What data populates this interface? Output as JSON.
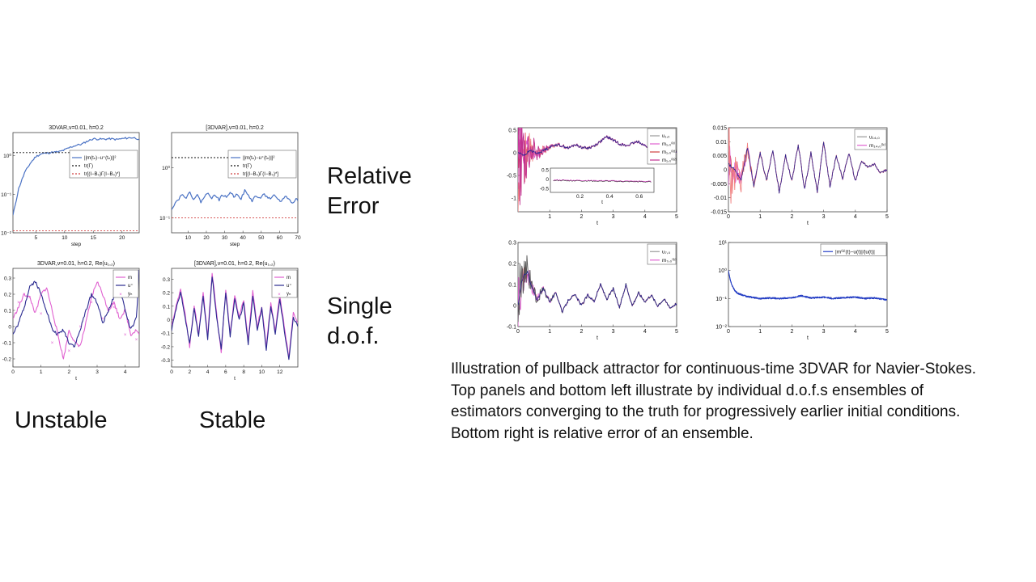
{
  "slide": {
    "labels": {
      "relative_error": [
        "Relative",
        "Error"
      ],
      "single_dof": [
        "Single",
        "d.o.f."
      ],
      "unstable": "Unstable",
      "stable": "Stable"
    },
    "caption": [
      "Illustration of pullback attractor for continuous-time 3DVAR for Navier-Stokes.",
      "Top panels and bottom left illustrate by individual d.o.f.s ensembles of",
      "estimators converging to the truth for progressively earlier initial conditions.",
      "Bottom right is relative error of an ensemble."
    ]
  },
  "colors": {
    "blue": "#4a72c4",
    "magenta": "#e060d0",
    "red": "#d04040",
    "black": "#111111",
    "navy": "#2a2a90",
    "ens_blue": "#2540c8"
  },
  "chart_data": [
    {
      "id": "unstable-error",
      "type": "line",
      "title": "3DVAR,ν=0.01, h=0.2",
      "xlabel": "step",
      "xlim": [
        1,
        23
      ],
      "ylim": [
        -2,
        0.6
      ],
      "yscale": "log",
      "xticks": [
        5,
        10,
        15,
        20
      ],
      "yticks": [
        {
          "v": 0,
          "t": "10⁰"
        },
        {
          "v": -1,
          "t": "10⁻¹"
        },
        {
          "v": -2,
          "t": "10⁻²"
        }
      ],
      "legend": [
        "||m(tₙ)−u⁺(tₙ)||²",
        "tr(Γ)",
        "tr[(I−B₀)Γ(I−B₀)*]"
      ],
      "series": [
        {
          "name": "||m(tₙ)−u⁺(tₙ)||²",
          "x": [
            1,
            2,
            3,
            4,
            5,
            6,
            7,
            8,
            9,
            10,
            11,
            12,
            13,
            14,
            15,
            16,
            17,
            18,
            19,
            20,
            21,
            22,
            23
          ],
          "y": [
            -1.55,
            -0.85,
            -0.45,
            -0.2,
            -0.02,
            0.05,
            0.07,
            0.09,
            0.1,
            0.15,
            0.22,
            0.27,
            0.3,
            0.38,
            0.44,
            0.43,
            0.43,
            0.44,
            0.42,
            0.44,
            0.46,
            0.47,
            0.43
          ]
        },
        {
          "name": "tr(Γ)",
          "x": [
            1,
            23
          ],
          "y": [
            0.08,
            0.08
          ]
        },
        {
          "name": "tr[(I−B₀)Γ(I−B₀)*]",
          "x": [
            1,
            23
          ],
          "y": [
            -1.95,
            -1.95
          ]
        }
      ]
    },
    {
      "id": "stable-error",
      "type": "line",
      "title": "[3DVAR],ν=0.01, h=0.2",
      "xlabel": "step",
      "xlim": [
        1,
        70
      ],
      "ylim": [
        -1.3,
        0.7
      ],
      "yscale": "log",
      "xticks": [
        10,
        20,
        30,
        40,
        50,
        60,
        70
      ],
      "yticks": [
        {
          "v": 0,
          "t": "10⁰"
        },
        {
          "v": -1,
          "t": "10⁻¹"
        }
      ],
      "legend": [
        "||m(tₙ)−u⁺(tₙ)||²",
        "tr(Γ)",
        "tr[(I−B₀)Γ(I−B₀)*]"
      ],
      "series": [
        {
          "name": "||m(tₙ)−u⁺(tₙ)||²",
          "x": [
            1,
            3,
            5,
            7,
            9,
            11,
            13,
            15,
            17,
            19,
            21,
            23,
            25,
            27,
            29,
            31,
            33,
            35,
            37,
            39,
            41,
            43,
            45,
            47,
            49,
            51,
            53,
            55,
            57,
            59,
            61,
            63,
            65,
            67,
            69,
            70
          ],
          "y": [
            -0.82,
            -0.7,
            -0.62,
            -0.52,
            -0.6,
            -0.5,
            -0.62,
            -0.55,
            -0.68,
            -0.58,
            -0.5,
            -0.6,
            -0.55,
            -0.64,
            -0.54,
            -0.6,
            -0.48,
            -0.58,
            -0.52,
            -0.62,
            -0.46,
            -0.56,
            -0.66,
            -0.56,
            -0.62,
            -0.52,
            -0.58,
            -0.64,
            -0.56,
            -0.62,
            -0.68,
            -0.56,
            -0.62,
            -0.72,
            -0.62,
            -0.66
          ]
        },
        {
          "name": "tr(Γ)",
          "x": [
            1,
            70
          ],
          "y": [
            0.2,
            0.2
          ]
        },
        {
          "name": "tr[(I−B₀)Γ(I−B₀)*]",
          "x": [
            1,
            70
          ],
          "y": [
            -1.0,
            -1.0
          ]
        }
      ]
    },
    {
      "id": "unstable-dof",
      "type": "line",
      "title": "3DVAR,ν=0.01, h=0.2, Re(u₁,₂)",
      "xlabel": "t",
      "xlim": [
        0,
        4.5
      ],
      "ylim": [
        -0.25,
        0.36
      ],
      "xticks": [
        0,
        1,
        2,
        3,
        4
      ],
      "yticks": [
        -0.2,
        -0.1,
        0,
        0.1,
        0.2,
        0.3
      ],
      "legend": [
        "m",
        "u⁺",
        "yₙ"
      ],
      "series": [
        {
          "name": "m",
          "x": [
            0,
            0.2,
            0.4,
            0.6,
            0.8,
            1.0,
            1.2,
            1.4,
            1.6,
            1.8,
            2.0,
            2.2,
            2.4,
            2.6,
            2.8,
            3.0,
            3.2,
            3.4,
            3.6,
            3.8,
            4.0,
            4.2,
            4.4,
            4.5
          ],
          "y": [
            0.05,
            0.12,
            0.2,
            0.18,
            0.08,
            0.2,
            0.24,
            0.1,
            -0.05,
            -0.2,
            -0.02,
            -0.1,
            -0.12,
            0.02,
            0.18,
            0.28,
            0.2,
            0.1,
            0.15,
            0.05,
            0.1,
            -0.05,
            -0.02,
            -0.05
          ]
        },
        {
          "name": "u⁺",
          "x": [
            0,
            0.2,
            0.4,
            0.6,
            0.8,
            1.0,
            1.2,
            1.4,
            1.6,
            1.8,
            2.0,
            2.2,
            2.4,
            2.6,
            2.8,
            3.0,
            3.2,
            3.4,
            3.6,
            3.8,
            4.0,
            4.2,
            4.4,
            4.5
          ],
          "y": [
            -0.05,
            0.02,
            0.12,
            0.25,
            0.28,
            0.2,
            0.1,
            -0.02,
            -0.05,
            -0.02,
            -0.1,
            -0.12,
            -0.02,
            0.1,
            0.2,
            0.15,
            0.02,
            0.1,
            0.18,
            0.25,
            0.1,
            -0.02,
            0.05,
            0.35
          ]
        },
        {
          "name": "yₙ",
          "x": [
            0.2,
            0.4,
            0.6,
            1.0,
            1.4,
            1.6,
            2.0,
            2.4,
            2.8,
            3.2,
            3.6,
            4.0,
            4.4
          ],
          "y": [
            0.15,
            0.2,
            0.18,
            0.08,
            -0.1,
            -0.05,
            -0.15,
            0.0,
            0.15,
            0.05,
            0.12,
            -0.05,
            -0.08
          ]
        }
      ]
    },
    {
      "id": "stable-dof",
      "type": "line",
      "title": "[3DVAR],ν=0.01, h=0.2, Re(u₁,₂)",
      "xlabel": "t",
      "xlim": [
        0,
        14
      ],
      "ylim": [
        -0.35,
        0.38
      ],
      "xticks": [
        0,
        2,
        4,
        6,
        8,
        10,
        12
      ],
      "yticks": [
        -0.3,
        -0.2,
        -0.1,
        0,
        0.1,
        0.2,
        0.3
      ],
      "legend": [
        "m",
        "u⁺",
        "yₙ"
      ],
      "series": [
        {
          "name": "m",
          "x": [
            0,
            0.5,
            1,
            1.5,
            2,
            2.5,
            3,
            3.5,
            4,
            4.5,
            5,
            5.5,
            6,
            6.5,
            7,
            7.5,
            8,
            8.5,
            9,
            9.5,
            10,
            10.5,
            11,
            11.5,
            12,
            12.5,
            13,
            13.5,
            14
          ],
          "y": [
            -0.05,
            0.1,
            0.22,
            0.05,
            -0.2,
            0.1,
            -0.1,
            0.2,
            -0.12,
            0.35,
            0.05,
            -0.25,
            0.22,
            -0.1,
            0.18,
            0.02,
            0.15,
            -0.15,
            0.22,
            -0.05,
            0.1,
            -0.2,
            0.12,
            -0.08,
            0.18,
            -0.05,
            -0.28,
            0.05,
            -0.02
          ]
        },
        {
          "name": "u⁺",
          "x": [
            0,
            0.5,
            1,
            1.5,
            2,
            2.5,
            3,
            3.5,
            4,
            4.5,
            5,
            5.5,
            6,
            6.5,
            7,
            7.5,
            8,
            8.5,
            9,
            9.5,
            10,
            10.5,
            11,
            11.5,
            12,
            12.5,
            13,
            13.5,
            14
          ],
          "y": [
            -0.08,
            0.08,
            0.2,
            0.02,
            -0.18,
            0.08,
            -0.12,
            0.18,
            -0.15,
            0.32,
            0.02,
            -0.22,
            0.2,
            -0.12,
            0.15,
            0.0,
            0.12,
            -0.18,
            0.18,
            -0.08,
            0.08,
            -0.22,
            0.1,
            -0.1,
            0.15,
            -0.08,
            -0.3,
            0.02,
            -0.05
          ]
        }
      ]
    },
    {
      "id": "pullback-u10",
      "type": "line",
      "xlabel": "t",
      "xlim": [
        0,
        5
      ],
      "ylim": [
        -1.3,
        0.55
      ],
      "xticks": [
        1,
        2,
        3,
        4,
        5
      ],
      "yticks": [
        -1,
        -0.5,
        0,
        0.5
      ],
      "legend": [
        "u₁,₀",
        "m₁,₀⁽ᵏ⁾",
        "m₁,₀⁽ᵏ¹⁾",
        "m₁,₀⁽ᵏ²⁾"
      ],
      "series": [
        {
          "name": "m₁,₀⁽ᵏ⁾",
          "x": [
            0,
            0.2,
            0.4,
            0.6,
            0.8,
            1.0,
            1.2,
            1.4,
            1.6,
            1.8,
            2.0,
            2.2,
            2.4,
            2.6,
            2.8,
            3.0,
            3.2,
            3.4,
            3.6,
            3.8,
            4.0,
            4.2,
            4.4,
            4.6,
            4.8,
            5.0
          ],
          "y": [
            0.0,
            -0.05,
            0.05,
            -0.02,
            0.05,
            0.12,
            0.18,
            0.15,
            0.1,
            0.18,
            0.12,
            0.1,
            0.15,
            0.25,
            0.35,
            0.28,
            0.2,
            0.15,
            0.2,
            0.25,
            0.15,
            0.1,
            0.12,
            0.05,
            0.02,
            0.0
          ]
        }
      ],
      "inset": {
        "xlim": [
          0,
          0.7
        ],
        "ylim": [
          -0.7,
          0.6
        ],
        "xticks": [
          0.2,
          0.4,
          0.6
        ],
        "yticks": [
          -0.5,
          0,
          0.5
        ],
        "xlabel": "t"
      }
    },
    {
      "id": "pullback-u140",
      "type": "line",
      "xlabel": "t",
      "xlim": [
        0,
        5
      ],
      "ylim": [
        -0.015,
        0.015
      ],
      "xticks": [
        0,
        1,
        2,
        3,
        4,
        5
      ],
      "yticks": [
        -0.015,
        -0.01,
        -0.005,
        0,
        0.005,
        0.01,
        0.015
      ],
      "legend": [
        "u₁₄,₀",
        "m₁₄,₀⁽ᵏ⁾"
      ],
      "series": [
        {
          "name": "m₁₄,₀⁽ᵏ⁾",
          "x": [
            0,
            0.2,
            0.4,
            0.6,
            0.8,
            1.0,
            1.2,
            1.4,
            1.6,
            1.8,
            2.0,
            2.2,
            2.4,
            2.6,
            2.8,
            3.0,
            3.2,
            3.4,
            3.6,
            3.8,
            4.0,
            4.2,
            4.4,
            4.6,
            4.8,
            5.0
          ],
          "y": [
            0.002,
            0.0,
            -0.004,
            0.008,
            -0.006,
            0.006,
            -0.004,
            0.007,
            -0.008,
            0.005,
            -0.004,
            0.009,
            -0.007,
            0.006,
            -0.008,
            0.01,
            -0.006,
            0.005,
            -0.003,
            0.006,
            -0.004,
            0.003,
            0.001,
            0.002,
            -0.001,
            0.0
          ]
        }
      ]
    },
    {
      "id": "pullback-u70",
      "type": "line",
      "xlabel": "t",
      "xlim": [
        0,
        5
      ],
      "ylim": [
        -0.1,
        0.3
      ],
      "xticks": [
        0,
        1,
        2,
        3,
        4,
        5
      ],
      "yticks": [
        -0.1,
        0,
        0.1,
        0.2,
        0.3
      ],
      "legend": [
        "u₇,₀",
        "m₇,₀⁽ᵏ⁾"
      ],
      "series": [
        {
          "name": "m₇,₀⁽ᵏ⁾",
          "x": [
            0,
            0.1,
            0.2,
            0.3,
            0.4,
            0.6,
            0.8,
            1.0,
            1.2,
            1.4,
            1.6,
            1.8,
            2.0,
            2.2,
            2.4,
            2.6,
            2.8,
            3.0,
            3.2,
            3.4,
            3.6,
            3.8,
            4.0,
            4.2,
            4.4,
            4.6,
            4.8,
            5.0
          ],
          "y": [
            0.0,
            0.1,
            0.15,
            0.16,
            0.1,
            0.03,
            0.08,
            0.02,
            0.06,
            -0.03,
            0.03,
            0.05,
            0.0,
            0.05,
            0.02,
            0.1,
            0.03,
            0.08,
            -0.01,
            0.1,
            0.0,
            0.06,
            0.02,
            0.05,
            0.0,
            0.03,
            -0.01,
            0.01
          ]
        }
      ]
    },
    {
      "id": "relative-error-ensemble",
      "type": "line",
      "xlabel": "t",
      "xlim": [
        0,
        5
      ],
      "ylim": [
        -2,
        1
      ],
      "yscale": "log",
      "xticks": [
        0,
        1,
        2,
        3,
        4,
        5
      ],
      "yticks": [
        {
          "v": 1,
          "t": "10¹"
        },
        {
          "v": 0,
          "t": "10⁰"
        },
        {
          "v": -1,
          "t": "10⁻¹"
        },
        {
          "v": -2,
          "t": "10⁻²"
        }
      ],
      "legend": [
        "|m⁽ᵏ⁾(t)−u(t)|/|u(t)|"
      ],
      "series": [
        {
          "name": "|m⁽ᵏ⁾(t)−u(t)|/|u(t)|",
          "x": [
            0,
            0.05,
            0.1,
            0.2,
            0.3,
            0.5,
            0.7,
            1.0,
            1.3,
            1.6,
            2.0,
            2.3,
            2.6,
            3.0,
            3.3,
            3.6,
            4.0,
            4.3,
            4.6,
            5.0
          ],
          "y": [
            0.0,
            -0.3,
            -0.5,
            -0.72,
            -0.82,
            -0.9,
            -0.95,
            -1.0,
            -0.98,
            -1.0,
            -0.97,
            -0.9,
            -0.98,
            -0.95,
            -1.0,
            -0.97,
            -0.95,
            -1.0,
            -0.98,
            -1.05
          ]
        }
      ]
    }
  ]
}
